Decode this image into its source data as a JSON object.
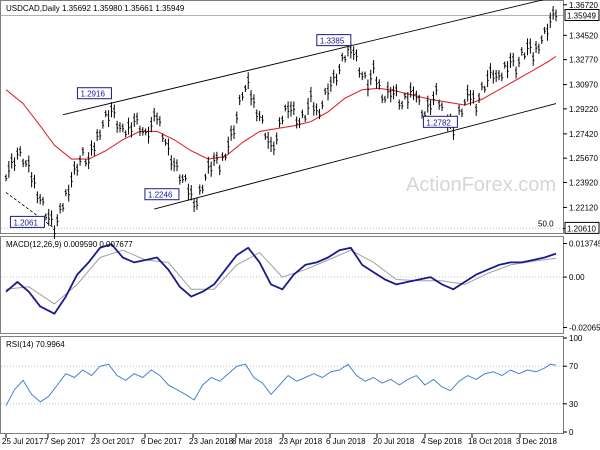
{
  "chart_data": [
    {
      "type": "candlestick",
      "symbol_header": "USDCAD,Daily  1.35692 1.35980 1.35661 1.35949",
      "last_price": "1.35949",
      "y_ticks": [
        "1.36720",
        "1.34520",
        "1.32770",
        "1.30970",
        "1.29220",
        "1.27420",
        "1.25670",
        "1.23920",
        "1.22120",
        "1.20610"
      ],
      "ylim": [
        1.2035,
        1.3692
      ],
      "x_ticks": [
        "25 Jul 2017",
        "7 Sep 2017",
        "23 Oct 2017",
        "6 Dec 2017",
        "23 Jan 2018",
        "8 Mar 2018",
        "23 Apr 2018",
        "6 Jun 2018",
        "20 Jul 2018",
        "4 Sep 2018",
        "18 Oct 2018",
        "3 Dec 2018"
      ],
      "annotations": [
        "1.2916",
        "1.3385",
        "1.2246",
        "1.2782",
        "1.2061"
      ],
      "level_label": "50.0",
      "level_value": "1.20610",
      "watermark": "ActionForex.com",
      "colors": {
        "price": "#000000",
        "ma": "#e0292b",
        "channel": "#000000",
        "annotation": "#1a1a8c"
      },
      "price_series": [
        [
          0,
          1.247
        ],
        [
          2,
          1.252
        ],
        [
          4,
          1.26
        ],
        [
          6,
          1.256
        ],
        [
          8,
          1.248
        ],
        [
          10,
          1.238
        ],
        [
          12,
          1.228
        ],
        [
          14,
          1.218
        ],
        [
          16,
          1.21
        ],
        [
          17,
          1.2061
        ],
        [
          19,
          1.216
        ],
        [
          21,
          1.23
        ],
        [
          23,
          1.242
        ],
        [
          25,
          1.252
        ],
        [
          27,
          1.258
        ],
        [
          29,
          1.254
        ],
        [
          31,
          1.265
        ],
        [
          33,
          1.278
        ],
        [
          35,
          1.286
        ],
        [
          37,
          1.2916
        ],
        [
          39,
          1.282
        ],
        [
          41,
          1.274
        ],
        [
          43,
          1.278
        ],
        [
          45,
          1.285
        ],
        [
          47,
          1.28
        ],
        [
          49,
          1.272
        ],
        [
          51,
          1.28
        ],
        [
          53,
          1.287
        ],
        [
          55,
          1.276
        ],
        [
          57,
          1.262
        ],
        [
          59,
          1.252
        ],
        [
          61,
          1.244
        ],
        [
          63,
          1.238
        ],
        [
          65,
          1.23
        ],
        [
          67,
          1.2246
        ],
        [
          69,
          1.238
        ],
        [
          71,
          1.248
        ],
        [
          73,
          1.255
        ],
        [
          75,
          1.25
        ],
        [
          77,
          1.262
        ],
        [
          79,
          1.272
        ],
        [
          81,
          1.286
        ],
        [
          83,
          1.304
        ],
        [
          85,
          1.308
        ],
        [
          87,
          1.296
        ],
        [
          89,
          1.288
        ],
        [
          91,
          1.276
        ],
        [
          93,
          1.263
        ],
        [
          95,
          1.27
        ],
        [
          97,
          1.286
        ],
        [
          99,
          1.296
        ],
        [
          101,
          1.29
        ],
        [
          103,
          1.282
        ],
        [
          105,
          1.288
        ],
        [
          107,
          1.298
        ],
        [
          109,
          1.29
        ],
        [
          111,
          1.296
        ],
        [
          113,
          1.308
        ],
        [
          115,
          1.312
        ],
        [
          117,
          1.32
        ],
        [
          119,
          1.33
        ],
        [
          121,
          1.3385
        ],
        [
          123,
          1.328
        ],
        [
          125,
          1.316
        ],
        [
          127,
          1.31
        ],
        [
          129,
          1.318
        ],
        [
          131,
          1.308
        ],
        [
          133,
          1.3
        ],
        [
          135,
          1.306
        ],
        [
          137,
          1.302
        ],
        [
          139,
          1.294
        ],
        [
          141,
          1.3
        ],
        [
          143,
          1.308
        ],
        [
          145,
          1.296
        ],
        [
          147,
          1.288
        ],
        [
          149,
          1.296
        ],
        [
          151,
          1.302
        ],
        [
          153,
          1.292
        ],
        [
          155,
          1.283
        ],
        [
          157,
          1.2782
        ],
        [
          159,
          1.288
        ],
        [
          161,
          1.296
        ],
        [
          163,
          1.302
        ],
        [
          165,
          1.296
        ],
        [
          167,
          1.306
        ],
        [
          169,
          1.314
        ],
        [
          171,
          1.318
        ],
        [
          173,
          1.312
        ],
        [
          175,
          1.322
        ],
        [
          177,
          1.328
        ],
        [
          179,
          1.322
        ],
        [
          181,
          1.33
        ],
        [
          183,
          1.336
        ],
        [
          185,
          1.33
        ],
        [
          187,
          1.34
        ],
        [
          189,
          1.346
        ],
        [
          191,
          1.356
        ],
        [
          193,
          1.3595
        ]
      ],
      "ma_series": [
        [
          0,
          1.306
        ],
        [
          6,
          1.296
        ],
        [
          12,
          1.28
        ],
        [
          17,
          1.266
        ],
        [
          23,
          1.256
        ],
        [
          29,
          1.256
        ],
        [
          35,
          1.262
        ],
        [
          41,
          1.27
        ],
        [
          47,
          1.276
        ],
        [
          53,
          1.276
        ],
        [
          59,
          1.27
        ],
        [
          65,
          1.262
        ],
        [
          71,
          1.256
        ],
        [
          77,
          1.258
        ],
        [
          83,
          1.268
        ],
        [
          89,
          1.276
        ],
        [
          95,
          1.278
        ],
        [
          101,
          1.28
        ],
        [
          107,
          1.283
        ],
        [
          113,
          1.29
        ],
        [
          119,
          1.3
        ],
        [
          125,
          1.306
        ],
        [
          131,
          1.307
        ],
        [
          137,
          1.305
        ],
        [
          143,
          1.302
        ],
        [
          149,
          1.299
        ],
        [
          155,
          1.297
        ],
        [
          161,
          1.295
        ],
        [
          167,
          1.299
        ],
        [
          173,
          1.306
        ],
        [
          179,
          1.313
        ],
        [
          185,
          1.32
        ],
        [
          190,
          1.326
        ],
        [
          193,
          1.33
        ]
      ],
      "channel_upper": [
        [
          20,
          1.288
        ],
        [
          193,
          1.373
        ]
      ],
      "channel_lower": [
        [
          52,
          1.22
        ],
        [
          193,
          1.296
        ]
      ],
      "support_line": [
        [
          0,
          1.232
        ],
        [
          17,
          1.2061
        ]
      ]
    },
    {
      "type": "line",
      "title": "MACD(12,26,9) 0.009590 0.007677",
      "y_ticks": [
        "0.013745",
        "0.00",
        "-0.020652"
      ],
      "ylim": [
        -0.0225,
        0.016
      ],
      "colors": {
        "macd": "#1a1a8c",
        "signal": "#a0a0a0"
      },
      "macd_series": [
        [
          0,
          -0.006
        ],
        [
          4,
          -0.002
        ],
        [
          8,
          -0.006
        ],
        [
          12,
          -0.012
        ],
        [
          17,
          -0.015
        ],
        [
          21,
          -0.008
        ],
        [
          25,
          0.001
        ],
        [
          29,
          0.006
        ],
        [
          33,
          0.012
        ],
        [
          37,
          0.0135
        ],
        [
          41,
          0.008
        ],
        [
          45,
          0.006
        ],
        [
          49,
          0.007
        ],
        [
          53,
          0.008
        ],
        [
          57,
          0.003
        ],
        [
          61,
          -0.004
        ],
        [
          65,
          -0.008
        ],
        [
          69,
          -0.006
        ],
        [
          73,
          -0.003
        ],
        [
          77,
          0.003
        ],
        [
          81,
          0.009
        ],
        [
          85,
          0.012
        ],
        [
          89,
          0.006
        ],
        [
          93,
          -0.003
        ],
        [
          97,
          -0.005
        ],
        [
          101,
          0.001
        ],
        [
          105,
          0.005
        ],
        [
          109,
          0.006
        ],
        [
          113,
          0.008
        ],
        [
          117,
          0.011
        ],
        [
          121,
          0.012
        ],
        [
          125,
          0.005
        ],
        [
          129,
          0.002
        ],
        [
          133,
          -0.001
        ],
        [
          137,
          -0.003
        ],
        [
          141,
          -0.002
        ],
        [
          145,
          -0.001
        ],
        [
          149,
          0.0
        ],
        [
          153,
          -0.003
        ],
        [
          157,
          -0.005
        ],
        [
          161,
          -0.002
        ],
        [
          165,
          0.001
        ],
        [
          169,
          0.003
        ],
        [
          173,
          0.005
        ],
        [
          177,
          0.006
        ],
        [
          181,
          0.006
        ],
        [
          185,
          0.007
        ],
        [
          189,
          0.008
        ],
        [
          193,
          0.0096
        ]
      ],
      "signal_series": [
        [
          0,
          -0.005
        ],
        [
          8,
          -0.004
        ],
        [
          17,
          -0.011
        ],
        [
          25,
          -0.003
        ],
        [
          33,
          0.008
        ],
        [
          41,
          0.011
        ],
        [
          49,
          0.007
        ],
        [
          57,
          0.006
        ],
        [
          65,
          -0.005
        ],
        [
          73,
          -0.005
        ],
        [
          81,
          0.005
        ],
        [
          89,
          0.01
        ],
        [
          97,
          0.0
        ],
        [
          105,
          0.003
        ],
        [
          113,
          0.007
        ],
        [
          121,
          0.011
        ],
        [
          129,
          0.006
        ],
        [
          137,
          -0.001
        ],
        [
          145,
          -0.0015
        ],
        [
          153,
          -0.0015
        ],
        [
          161,
          -0.003
        ],
        [
          169,
          0.0015
        ],
        [
          177,
          0.005
        ],
        [
          185,
          0.0065
        ],
        [
          193,
          0.0077
        ]
      ]
    },
    {
      "type": "line",
      "title": "RSI(14) 70.9964",
      "y_ticks": [
        "100",
        "70",
        "30",
        "0"
      ],
      "ylim": [
        0,
        100
      ],
      "colors": {
        "rsi": "#4682d8"
      },
      "rsi_series": [
        [
          0,
          28
        ],
        [
          3,
          45
        ],
        [
          6,
          55
        ],
        [
          9,
          40
        ],
        [
          12,
          32
        ],
        [
          15,
          38
        ],
        [
          18,
          50
        ],
        [
          21,
          62
        ],
        [
          24,
          58
        ],
        [
          27,
          66
        ],
        [
          30,
          60
        ],
        [
          33,
          70
        ],
        [
          36,
          72
        ],
        [
          39,
          60
        ],
        [
          42,
          55
        ],
        [
          45,
          62
        ],
        [
          48,
          58
        ],
        [
          51,
          66
        ],
        [
          54,
          60
        ],
        [
          57,
          50
        ],
        [
          60,
          45
        ],
        [
          63,
          40
        ],
        [
          66,
          34
        ],
        [
          69,
          50
        ],
        [
          72,
          58
        ],
        [
          75,
          54
        ],
        [
          78,
          62
        ],
        [
          81,
          70
        ],
        [
          84,
          72
        ],
        [
          87,
          58
        ],
        [
          90,
          52
        ],
        [
          93,
          40
        ],
        [
          96,
          50
        ],
        [
          99,
          60
        ],
        [
          102,
          54
        ],
        [
          105,
          58
        ],
        [
          108,
          62
        ],
        [
          111,
          58
        ],
        [
          114,
          64
        ],
        [
          117,
          66
        ],
        [
          120,
          72
        ],
        [
          123,
          60
        ],
        [
          126,
          54
        ],
        [
          129,
          58
        ],
        [
          132,
          52
        ],
        [
          135,
          56
        ],
        [
          138,
          50
        ],
        [
          141,
          56
        ],
        [
          144,
          60
        ],
        [
          147,
          50
        ],
        [
          150,
          56
        ],
        [
          153,
          48
        ],
        [
          156,
          44
        ],
        [
          159,
          54
        ],
        [
          162,
          60
        ],
        [
          165,
          56
        ],
        [
          168,
          62
        ],
        [
          171,
          64
        ],
        [
          174,
          60
        ],
        [
          177,
          66
        ],
        [
          180,
          62
        ],
        [
          183,
          66
        ],
        [
          186,
          64
        ],
        [
          189,
          68
        ],
        [
          191,
          72
        ],
        [
          193,
          71
        ]
      ]
    }
  ]
}
